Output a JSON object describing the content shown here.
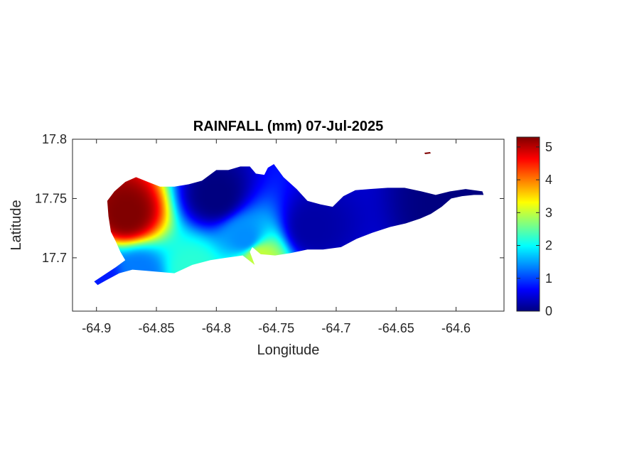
{
  "chart_data": {
    "type": "heatmap",
    "title": "RAINFALL (mm) 07-Jul-2025",
    "xlabel": "Longitude",
    "ylabel": "Latitude",
    "xlim": [
      -64.92,
      -64.56
    ],
    "ylim": [
      17.655,
      17.8
    ],
    "x_ticks": [
      -64.9,
      -64.85,
      -64.8,
      -64.75,
      -64.7,
      -64.65,
      -64.6
    ],
    "x_tick_labels": [
      "-64.9",
      "-64.85",
      "-64.8",
      "-64.75",
      "-64.7",
      "-64.65",
      "-64.6"
    ],
    "y_ticks": [
      17.7,
      17.75,
      17.8
    ],
    "y_tick_labels": [
      "17.7",
      "17.75",
      "17.8"
    ],
    "colorbar": {
      "colormap": "jet",
      "min": 0,
      "max": 5.3,
      "ticks": [
        0,
        1,
        2,
        3,
        4,
        5
      ],
      "tick_labels": [
        "0",
        "1",
        "2",
        "3",
        "4",
        "5"
      ]
    },
    "grid": false,
    "field_samples": [
      {
        "lon": -64.875,
        "lat": 17.737,
        "value": 5.3
      },
      {
        "lon": -64.8,
        "lat": 17.752,
        "value": 0.0
      },
      {
        "lon": -64.776,
        "lat": 17.716,
        "value": 1.4
      },
      {
        "lon": -64.765,
        "lat": 17.7,
        "value": 3.0
      },
      {
        "lon": -64.72,
        "lat": 17.725,
        "value": 0.2
      },
      {
        "lon": -64.865,
        "lat": 17.687,
        "value": 1.3
      },
      {
        "lon": -64.895,
        "lat": 17.682,
        "value": 0.8
      },
      {
        "lon": -64.82,
        "lat": 17.69,
        "value": 2.2
      },
      {
        "lon": -64.6,
        "lat": 17.745,
        "value": 0.0
      }
    ]
  }
}
